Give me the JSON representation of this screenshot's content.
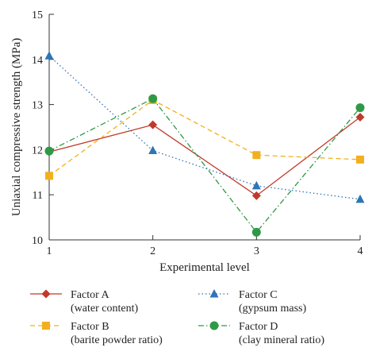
{
  "chart_data": {
    "type": "line",
    "x": [
      1,
      2,
      3,
      4
    ],
    "x_ticks": [
      "1",
      "2",
      "3",
      "4"
    ],
    "y_ticks": [
      "10",
      "11",
      "12",
      "13",
      "14",
      "15"
    ],
    "xlabel": "Experimental level",
    "ylabel": "Uniaxial compressive strength (MPa)",
    "xlim": [
      1,
      4
    ],
    "ylim": [
      10,
      15
    ],
    "grid": false,
    "legend_position": "bottom",
    "series": [
      {
        "name": "Factor A",
        "name_sub": "(water content)",
        "values": [
          11.95,
          12.55,
          10.98,
          12.72
        ],
        "color": "#c0392b",
        "marker": "diamond",
        "line_style": "solid"
      },
      {
        "name": "Factor B",
        "name_sub": "(barite powder ratio)",
        "values": [
          11.42,
          13.1,
          11.88,
          11.78
        ],
        "color": "#f2b01e",
        "marker": "square",
        "line_style": "dashed"
      },
      {
        "name": "Factor C",
        "name_sub": "(gypsum mass)",
        "values": [
          14.08,
          11.98,
          11.2,
          10.9
        ],
        "color": "#2e75b6",
        "marker": "triangle",
        "line_style": "dotted"
      },
      {
        "name": "Factor D",
        "name_sub": "(clay mineral ratio)",
        "values": [
          11.97,
          13.13,
          10.17,
          12.93
        ],
        "color": "#2e9a47",
        "marker": "circle",
        "line_style": "dashdot"
      }
    ]
  }
}
